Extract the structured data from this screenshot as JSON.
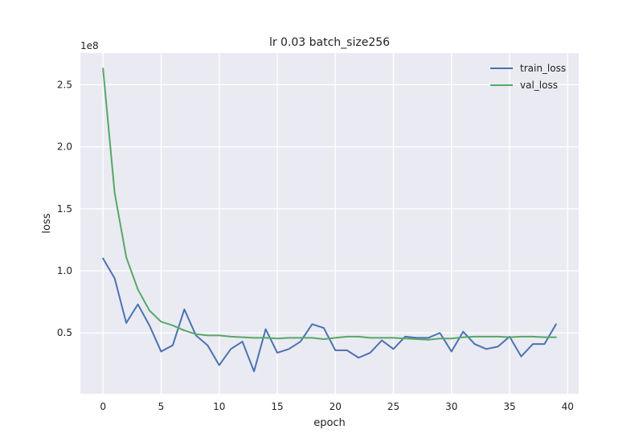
{
  "chart_data": {
    "type": "line",
    "title": "lr 0.03 batch_size256",
    "xlabel": "epoch",
    "ylabel": "loss",
    "y_offset_label": "1e8",
    "xlim": [
      -1.95,
      40.95
    ],
    "ylim": [
      0.0095,
      2.755
    ],
    "x_ticks": [
      0,
      5,
      10,
      15,
      20,
      25,
      30,
      35,
      40
    ],
    "x_tick_labels": [
      "0",
      "5",
      "10",
      "15",
      "20",
      "25",
      "30",
      "35",
      "40"
    ],
    "y_ticks": [
      0.5,
      1.0,
      1.5,
      2.0,
      2.5
    ],
    "y_tick_labels": [
      "0.5",
      "1.0",
      "1.5",
      "2.0",
      "2.5"
    ],
    "grid": true,
    "legend_position": "top-right",
    "x": [
      0,
      1,
      2,
      3,
      4,
      5,
      6,
      7,
      8,
      9,
      10,
      11,
      12,
      13,
      14,
      15,
      16,
      17,
      18,
      19,
      20,
      21,
      22,
      23,
      24,
      25,
      26,
      27,
      28,
      29,
      30,
      31,
      32,
      33,
      34,
      35,
      36,
      37,
      38,
      39
    ],
    "series": [
      {
        "name": "train_loss",
        "color": "#4c72b0",
        "values": [
          1.1,
          0.94,
          0.58,
          0.73,
          0.56,
          0.35,
          0.4,
          0.69,
          0.48,
          0.4,
          0.24,
          0.37,
          0.43,
          0.19,
          0.53,
          0.34,
          0.37,
          0.43,
          0.57,
          0.54,
          0.36,
          0.36,
          0.3,
          0.34,
          0.44,
          0.37,
          0.47,
          0.46,
          0.46,
          0.5,
          0.35,
          0.51,
          0.41,
          0.37,
          0.39,
          0.47,
          0.31,
          0.41,
          0.41,
          0.57
        ]
      },
      {
        "name": "val_loss",
        "color": "#55a868",
        "values": [
          2.63,
          1.63,
          1.11,
          0.85,
          0.68,
          0.59,
          0.56,
          0.52,
          0.49,
          0.48,
          0.48,
          0.47,
          0.465,
          0.46,
          0.46,
          0.455,
          0.46,
          0.46,
          0.46,
          0.45,
          0.46,
          0.47,
          0.47,
          0.46,
          0.46,
          0.46,
          0.455,
          0.45,
          0.445,
          0.455,
          0.455,
          0.465,
          0.47,
          0.47,
          0.47,
          0.465,
          0.47,
          0.47,
          0.465,
          0.465
        ]
      }
    ]
  }
}
